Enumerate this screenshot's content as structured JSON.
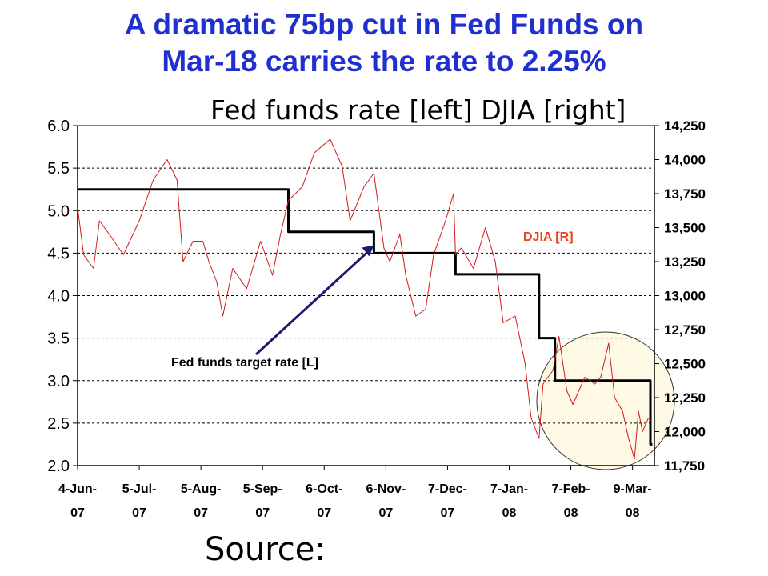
{
  "chart_data": {
    "type": "line",
    "title_lines": [
      "A dramatic 75bp cut in Fed Funds on",
      "Mar-18 carries the rate to 2.25%"
    ],
    "subtitle": "Fed funds rate [left] DJIA [right]",
    "source_label": "Source:",
    "x_ticks": [
      {
        "top": "4-Jun-",
        "bottom": "07",
        "date": "2007-06-04"
      },
      {
        "top": "5-Jul-",
        "bottom": "07",
        "date": "2007-07-05"
      },
      {
        "top": "5-Aug-",
        "bottom": "07",
        "date": "2007-08-05"
      },
      {
        "top": "5-Sep-",
        "bottom": "07",
        "date": "2007-09-05"
      },
      {
        "top": "6-Oct-",
        "bottom": "07",
        "date": "2007-10-06"
      },
      {
        "top": "6-Nov-",
        "bottom": "07",
        "date": "2007-11-06"
      },
      {
        "top": "7-Dec-",
        "bottom": "07",
        "date": "2007-12-07"
      },
      {
        "top": "7-Jan-",
        "bottom": "08",
        "date": "2008-01-07"
      },
      {
        "top": "7-Feb-",
        "bottom": "08",
        "date": "2008-02-07"
      },
      {
        "top": "9-Mar-",
        "bottom": "08",
        "date": "2008-03-09"
      }
    ],
    "x_range": [
      "2007-06-04",
      "2008-03-20"
    ],
    "y_left": {
      "ylim": [
        2.0,
        6.0
      ],
      "ticks": [
        "2.0",
        "2.5",
        "3.0",
        "3.5",
        "4.0",
        "4.5",
        "5.0",
        "5.5",
        "6.0"
      ]
    },
    "y_right": {
      "ylim": [
        11750,
        14250
      ],
      "ticks": [
        "11,750",
        "12,000",
        "12,250",
        "12,500",
        "12,750",
        "13,000",
        "13,250",
        "13,500",
        "13,750",
        "14,000",
        "14,250"
      ]
    },
    "grid": "horizontal dashed",
    "series": [
      {
        "name": "Fed funds target rate [L]",
        "axis": "left",
        "color": "#000000",
        "points": [
          {
            "date": "2007-06-04",
            "value": 5.25
          },
          {
            "date": "2007-09-18",
            "value": 5.25
          },
          {
            "date": "2007-09-18",
            "value": 4.75
          },
          {
            "date": "2007-10-31",
            "value": 4.75
          },
          {
            "date": "2007-10-31",
            "value": 4.5
          },
          {
            "date": "2007-12-11",
            "value": 4.5
          },
          {
            "date": "2007-12-11",
            "value": 4.25
          },
          {
            "date": "2008-01-22",
            "value": 4.25
          },
          {
            "date": "2008-01-22",
            "value": 3.5
          },
          {
            "date": "2008-01-30",
            "value": 3.5
          },
          {
            "date": "2008-01-30",
            "value": 3.0
          },
          {
            "date": "2008-03-18",
            "value": 3.0
          },
          {
            "date": "2008-03-18",
            "value": 2.25
          },
          {
            "date": "2008-03-19",
            "value": 2.25
          }
        ]
      },
      {
        "name": "DJIA [R]",
        "axis": "right",
        "color": "#d21a1a",
        "points": [
          {
            "date": "2007-06-04",
            "value": 13650
          },
          {
            "date": "2007-06-07",
            "value": 13300
          },
          {
            "date": "2007-06-12",
            "value": 13200
          },
          {
            "date": "2007-06-15",
            "value": 13550
          },
          {
            "date": "2007-06-20",
            "value": 13450
          },
          {
            "date": "2007-06-27",
            "value": 13300
          },
          {
            "date": "2007-07-05",
            "value": 13550
          },
          {
            "date": "2007-07-12",
            "value": 13850
          },
          {
            "date": "2007-07-19",
            "value": 14000
          },
          {
            "date": "2007-07-24",
            "value": 13850
          },
          {
            "date": "2007-07-27",
            "value": 13250
          },
          {
            "date": "2007-08-01",
            "value": 13400
          },
          {
            "date": "2007-08-06",
            "value": 13400
          },
          {
            "date": "2007-08-09",
            "value": 13250
          },
          {
            "date": "2007-08-13",
            "value": 13100
          },
          {
            "date": "2007-08-16",
            "value": 12850
          },
          {
            "date": "2007-08-21",
            "value": 13200
          },
          {
            "date": "2007-08-28",
            "value": 13050
          },
          {
            "date": "2007-09-04",
            "value": 13400
          },
          {
            "date": "2007-09-10",
            "value": 13150
          },
          {
            "date": "2007-09-14",
            "value": 13450
          },
          {
            "date": "2007-09-18",
            "value": 13700
          },
          {
            "date": "2007-09-25",
            "value": 13800
          },
          {
            "date": "2007-10-01",
            "value": 14050
          },
          {
            "date": "2007-10-09",
            "value": 14150
          },
          {
            "date": "2007-10-15",
            "value": 13950
          },
          {
            "date": "2007-10-19",
            "value": 13550
          },
          {
            "date": "2007-10-26",
            "value": 13800
          },
          {
            "date": "2007-10-31",
            "value": 13900
          },
          {
            "date": "2007-11-05",
            "value": 13350
          },
          {
            "date": "2007-11-08",
            "value": 13250
          },
          {
            "date": "2007-11-13",
            "value": 13450
          },
          {
            "date": "2007-11-16",
            "value": 13150
          },
          {
            "date": "2007-11-21",
            "value": 12850
          },
          {
            "date": "2007-11-26",
            "value": 12900
          },
          {
            "date": "2007-11-30",
            "value": 13300
          },
          {
            "date": "2007-12-06",
            "value": 13550
          },
          {
            "date": "2007-12-10",
            "value": 13750
          },
          {
            "date": "2007-12-11",
            "value": 13300
          },
          {
            "date": "2007-12-14",
            "value": 13350
          },
          {
            "date": "2007-12-20",
            "value": 13200
          },
          {
            "date": "2007-12-26",
            "value": 13500
          },
          {
            "date": "2007-12-31",
            "value": 13250
          },
          {
            "date": "2008-01-04",
            "value": 12800
          },
          {
            "date": "2008-01-10",
            "value": 12850
          },
          {
            "date": "2008-01-15",
            "value": 12500
          },
          {
            "date": "2008-01-18",
            "value": 12100
          },
          {
            "date": "2008-01-22",
            "value": 11950
          },
          {
            "date": "2008-01-24",
            "value": 12350
          },
          {
            "date": "2008-01-29",
            "value": 12450
          },
          {
            "date": "2008-02-01",
            "value": 12700
          },
          {
            "date": "2008-02-05",
            "value": 12300
          },
          {
            "date": "2008-02-08",
            "value": 12200
          },
          {
            "date": "2008-02-14",
            "value": 12400
          },
          {
            "date": "2008-02-19",
            "value": 12350
          },
          {
            "date": "2008-02-22",
            "value": 12400
          },
          {
            "date": "2008-02-26",
            "value": 12650
          },
          {
            "date": "2008-02-29",
            "value": 12250
          },
          {
            "date": "2008-03-04",
            "value": 12150
          },
          {
            "date": "2008-03-07",
            "value": 11950
          },
          {
            "date": "2008-03-10",
            "value": 11800
          },
          {
            "date": "2008-03-12",
            "value": 12150
          },
          {
            "date": "2008-03-14",
            "value": 12000
          },
          {
            "date": "2008-03-17",
            "value": 12100
          },
          {
            "date": "2008-03-19",
            "value": 12100
          }
        ]
      }
    ],
    "annotations": {
      "fed_label": "Fed funds target rate [L]",
      "djia_label": "DJIA [R]",
      "arrow_points_to": {
        "date": "2007-10-31",
        "value": 4.65
      }
    },
    "highlight": {
      "shape": "circle",
      "fill": "#fffae6",
      "around": "Jan-Mar 2008"
    }
  }
}
